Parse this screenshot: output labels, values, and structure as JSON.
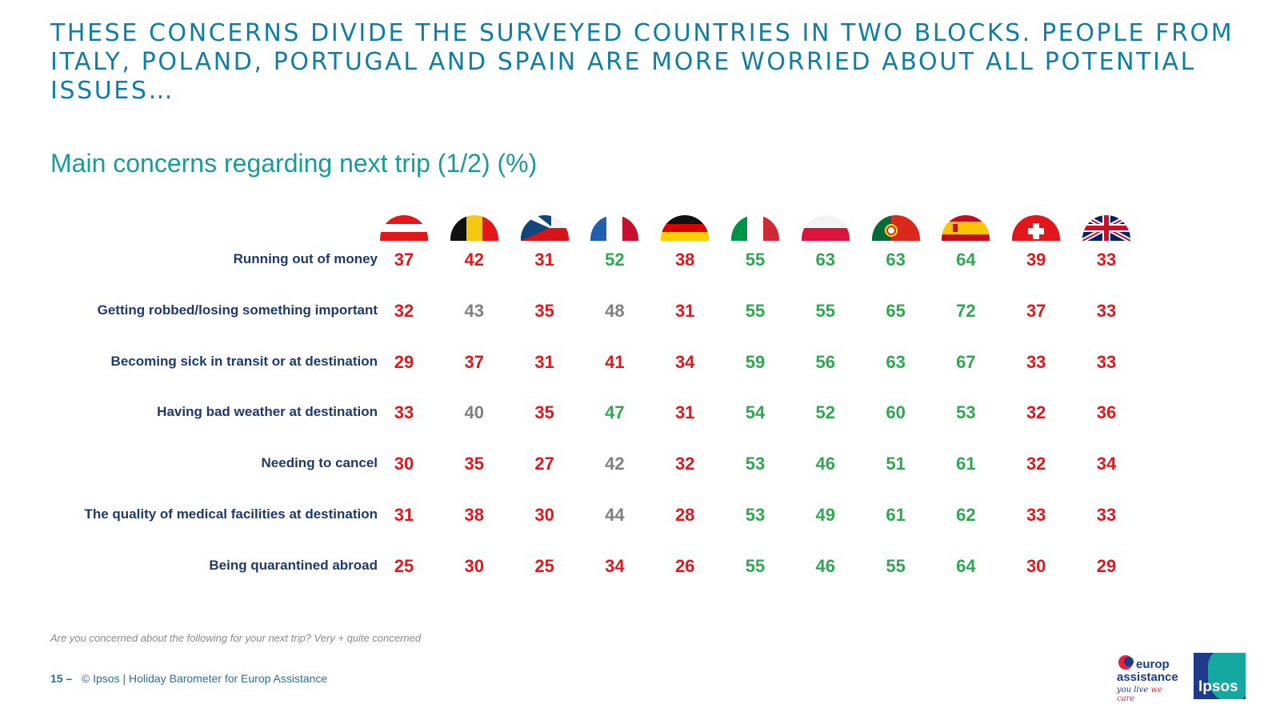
{
  "headline": "THESE CONCERNS DIVIDE THE SURVEYED COUNTRIES IN TWO BLOCKS. PEOPLE FROM ITALY, POLAND, PORTUGAL AND SPAIN ARE MORE WORRIED ABOUT ALL POTENTIAL ISSUES…",
  "colors": {
    "high": "#2ea84f",
    "low": "#e3161b",
    "neutral": "#7f7f7f"
  },
  "chart_data": {
    "type": "table",
    "title": "Main concerns regarding next trip (1/2) (%)",
    "unit": "%",
    "columns": [
      {
        "country": "Austria",
        "flag": "austria-flag-icon"
      },
      {
        "country": "Belgium",
        "flag": "belgium-flag-icon"
      },
      {
        "country": "Czech Republic",
        "flag": "czech-flag-icon"
      },
      {
        "country": "France",
        "flag": "france-flag-icon"
      },
      {
        "country": "Germany",
        "flag": "germany-flag-icon"
      },
      {
        "country": "Italy",
        "flag": "italy-flag-icon"
      },
      {
        "country": "Poland",
        "flag": "poland-flag-icon"
      },
      {
        "country": "Portugal",
        "flag": "portugal-flag-icon"
      },
      {
        "country": "Spain",
        "flag": "spain-flag-icon"
      },
      {
        "country": "Switzerland",
        "flag": "switzerland-flag-icon"
      },
      {
        "country": "United Kingdom",
        "flag": "uk-flag-icon"
      }
    ],
    "rows": [
      {
        "label": "Running out of money",
        "values": [
          37,
          42,
          31,
          52,
          38,
          55,
          63,
          63,
          64,
          39,
          33
        ],
        "significance": [
          "low",
          "low",
          "low",
          "high",
          "low",
          "high",
          "high",
          "high",
          "high",
          "low",
          "low"
        ]
      },
      {
        "label": "Getting robbed/losing something important",
        "values": [
          32,
          43,
          35,
          48,
          31,
          55,
          55,
          65,
          72,
          37,
          33
        ],
        "significance": [
          "low",
          "neutral",
          "low",
          "neutral",
          "low",
          "high",
          "high",
          "high",
          "high",
          "low",
          "low"
        ]
      },
      {
        "label": "Becoming sick in transit or at destination",
        "values": [
          29,
          37,
          31,
          41,
          34,
          59,
          56,
          63,
          67,
          33,
          33
        ],
        "significance": [
          "low",
          "low",
          "low",
          "low",
          "low",
          "high",
          "high",
          "high",
          "high",
          "low",
          "low"
        ]
      },
      {
        "label": "Having bad weather at destination",
        "values": [
          33,
          40,
          35,
          47,
          31,
          54,
          52,
          60,
          53,
          32,
          36
        ],
        "significance": [
          "low",
          "neutral",
          "low",
          "high",
          "low",
          "high",
          "high",
          "high",
          "high",
          "low",
          "low"
        ]
      },
      {
        "label": "Needing to cancel",
        "values": [
          30,
          35,
          27,
          42,
          32,
          53,
          46,
          51,
          61,
          32,
          34
        ],
        "significance": [
          "low",
          "low",
          "low",
          "neutral",
          "low",
          "high",
          "high",
          "high",
          "high",
          "low",
          "low"
        ]
      },
      {
        "label": "The quality of medical facilities at destination",
        "values": [
          31,
          38,
          30,
          44,
          28,
          53,
          49,
          61,
          62,
          33,
          33
        ],
        "significance": [
          "low",
          "low",
          "low",
          "neutral",
          "low",
          "high",
          "high",
          "high",
          "high",
          "low",
          "low"
        ]
      },
      {
        "label": "Being quarantined abroad",
        "values": [
          25,
          30,
          25,
          34,
          26,
          55,
          46,
          55,
          64,
          30,
          29
        ],
        "significance": [
          "low",
          "low",
          "low",
          "low",
          "low",
          "high",
          "high",
          "high",
          "high",
          "low",
          "low"
        ]
      }
    ]
  },
  "note": "Are you concerned about the following for your next trip? Very + quite concerned",
  "footer": {
    "page": "15 –",
    "text": "© Ipsos | Holiday Barometer for Europ Assistance"
  },
  "logos": {
    "europ_assistance": {
      "line1": "europ",
      "line2": "assistance",
      "tag1": "you live",
      "tag2": "we care"
    },
    "ipsos": "Ipsos"
  }
}
